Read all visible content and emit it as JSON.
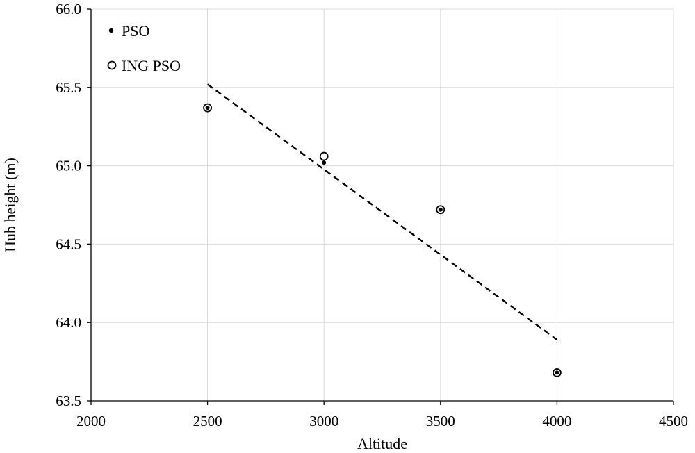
{
  "chart_data": {
    "type": "scatter",
    "xlabel": "Altitude",
    "ylabel": "Hub height (m)",
    "xlim": [
      2000,
      4500
    ],
    "ylim": [
      63.5,
      66.0
    ],
    "x_ticks": [
      2000,
      2500,
      3000,
      3500,
      4000,
      4500
    ],
    "y_ticks": [
      "63.5",
      "64.0",
      "64.5",
      "65.0",
      "65.5",
      "66.0"
    ],
    "grid": true,
    "legend_position": "top-left",
    "series": [
      {
        "name": "PSO",
        "marker": "filled-dot",
        "x": [
          2500,
          3000,
          3500,
          4000
        ],
        "y": [
          65.37,
          65.02,
          64.72,
          63.68
        ]
      },
      {
        "name": "ING PSO",
        "marker": "open-circle",
        "x": [
          2500,
          3000,
          3500,
          4000
        ],
        "y": [
          65.37,
          65.06,
          64.72,
          63.68
        ]
      }
    ],
    "trendline": {
      "style": "dashed",
      "x": [
        2500,
        4000
      ],
      "y": [
        65.52,
        63.89
      ]
    }
  }
}
